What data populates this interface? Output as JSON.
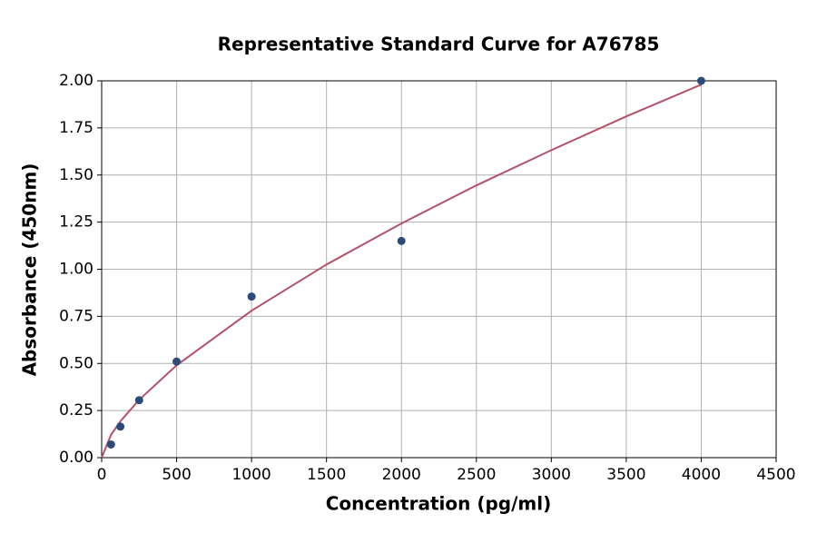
{
  "chart_data": {
    "type": "scatter",
    "title": "Representative Standard Curve for A76785",
    "xlabel": "Concentration (pg/ml)",
    "ylabel": "Absorbance (450nm)",
    "series": [
      {
        "mark": "point",
        "color": "#2d4b78",
        "x": [
          62.5,
          125,
          250,
          500,
          1000,
          2000,
          4000
        ],
        "values": [
          0.07,
          0.165,
          0.305,
          0.51,
          0.855,
          1.15,
          2.0
        ]
      },
      {
        "mark": "line",
        "color": "#b5506b",
        "x": [
          0,
          62.5,
          125,
          250,
          500,
          1000,
          1500,
          2000,
          2500,
          3000,
          3500,
          4000
        ],
        "values": [
          0,
          0.121,
          0.193,
          0.307,
          0.49,
          0.78,
          1.025,
          1.243,
          1.445,
          1.632,
          1.811,
          1.98
        ]
      }
    ],
    "xlim": [
      0,
      4500
    ],
    "xticks": [
      0,
      500,
      1000,
      1500,
      2000,
      2500,
      3000,
      3500,
      4000,
      4500
    ],
    "ylim": [
      0,
      2
    ],
    "yticks": [
      {
        "value": 0,
        "label": "0.00"
      },
      {
        "value": 0.25,
        "label": "0.25"
      },
      {
        "value": 0.5,
        "label": "0.50"
      },
      {
        "value": 0.75,
        "label": "0.75"
      },
      {
        "value": 1,
        "label": "1.00"
      },
      {
        "value": 1.25,
        "label": "1.25"
      },
      {
        "value": 1.5,
        "label": "1.50"
      },
      {
        "value": 1.75,
        "label": "1.75"
      },
      {
        "value": 2,
        "label": "2.00"
      }
    ],
    "grid": true
  }
}
